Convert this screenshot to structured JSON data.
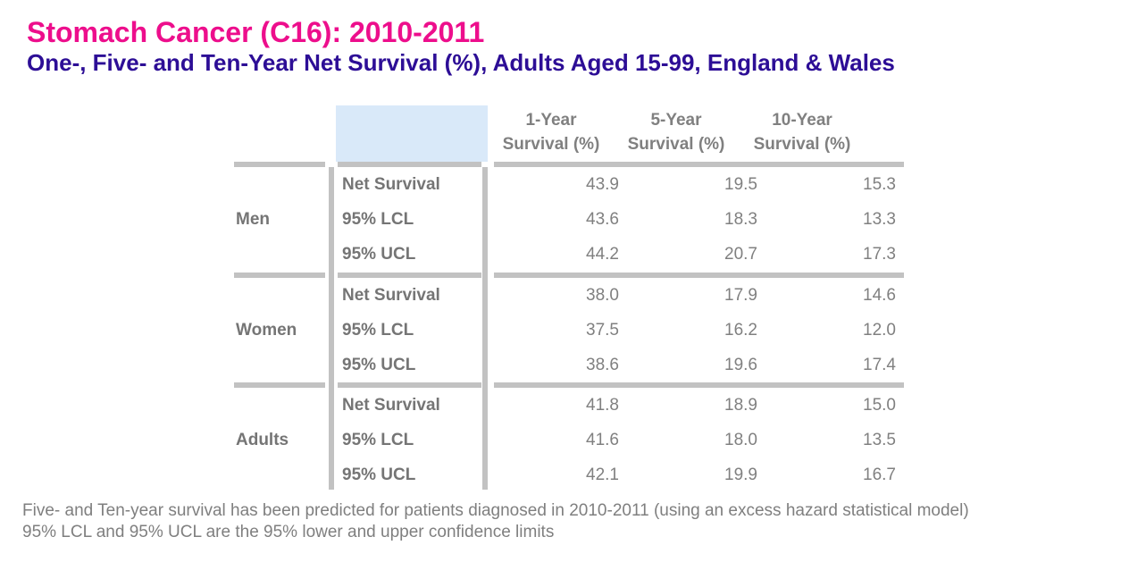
{
  "title": "Stomach Cancer (C16): 2010-2011",
  "subtitle": "One-, Five- and Ten-Year Net Survival (%), Adults Aged 15-99, England & Wales",
  "colors": {
    "title_pink": "#ED0E8C",
    "subtitle_purple": "#2D0E96",
    "table_text_gray": "#808080",
    "divider_gray": "#C2C2C2",
    "header_fill_blue": "#D9E9F9"
  },
  "table": {
    "columns": [
      {
        "line1": "1-Year",
        "line2": "Survival (%)"
      },
      {
        "line1": "5-Year",
        "line2": "Survival (%)"
      },
      {
        "line1": "10-Year",
        "line2": "Survival (%)"
      }
    ],
    "groups": [
      {
        "label": "Men",
        "rows": [
          {
            "label": "Net Survival",
            "values": [
              "43.9",
              "19.5",
              "15.3"
            ]
          },
          {
            "label": "95% LCL",
            "values": [
              "43.6",
              "18.3",
              "13.3"
            ]
          },
          {
            "label": "95% UCL",
            "values": [
              "44.2",
              "20.7",
              "17.3"
            ]
          }
        ]
      },
      {
        "label": "Women",
        "rows": [
          {
            "label": "Net Survival",
            "values": [
              "38.0",
              "17.9",
              "14.6"
            ]
          },
          {
            "label": "95% LCL",
            "values": [
              "37.5",
              "16.2",
              "12.0"
            ]
          },
          {
            "label": "95% UCL",
            "values": [
              "38.6",
              "19.6",
              "17.4"
            ]
          }
        ]
      },
      {
        "label": "Adults",
        "rows": [
          {
            "label": "Net Survival",
            "values": [
              "41.8",
              "18.9",
              "15.0"
            ]
          },
          {
            "label": "95% LCL",
            "values": [
              "41.6",
              "18.0",
              "13.5"
            ]
          },
          {
            "label": "95% UCL",
            "values": [
              "42.1",
              "19.9",
              "16.7"
            ]
          }
        ]
      }
    ]
  },
  "footnotes": [
    "Five- and Ten-year survival has been predicted for patients diagnosed in 2010-2011 (using an excess hazard statistical model)",
    "95% LCL and 95% UCL are the 95% lower and upper confidence limits"
  ],
  "chart_data": {
    "type": "table",
    "title": "Stomach Cancer (C16): 2010-2011",
    "subtitle": "One-, Five- and Ten-Year Net Survival (%), Adults Aged 15-99, England & Wales",
    "columns": [
      "1-Year Survival (%)",
      "5-Year Survival (%)",
      "10-Year Survival (%)"
    ],
    "rows": [
      {
        "group": "Men",
        "measure": "Net Survival",
        "values": [
          43.9,
          19.5,
          15.3
        ]
      },
      {
        "group": "Men",
        "measure": "95% LCL",
        "values": [
          43.6,
          18.3,
          13.3
        ]
      },
      {
        "group": "Men",
        "measure": "95% UCL",
        "values": [
          44.2,
          20.7,
          17.3
        ]
      },
      {
        "group": "Women",
        "measure": "Net Survival",
        "values": [
          38.0,
          17.9,
          14.6
        ]
      },
      {
        "group": "Women",
        "measure": "95% LCL",
        "values": [
          37.5,
          16.2,
          12.0
        ]
      },
      {
        "group": "Women",
        "measure": "95% UCL",
        "values": [
          38.6,
          19.6,
          17.4
        ]
      },
      {
        "group": "Adults",
        "measure": "Net Survival",
        "values": [
          41.8,
          18.9,
          15.0
        ]
      },
      {
        "group": "Adults",
        "measure": "95% LCL",
        "values": [
          41.6,
          18.0,
          13.5
        ]
      },
      {
        "group": "Adults",
        "measure": "95% UCL",
        "values": [
          42.1,
          19.9,
          16.7
        ]
      }
    ]
  }
}
